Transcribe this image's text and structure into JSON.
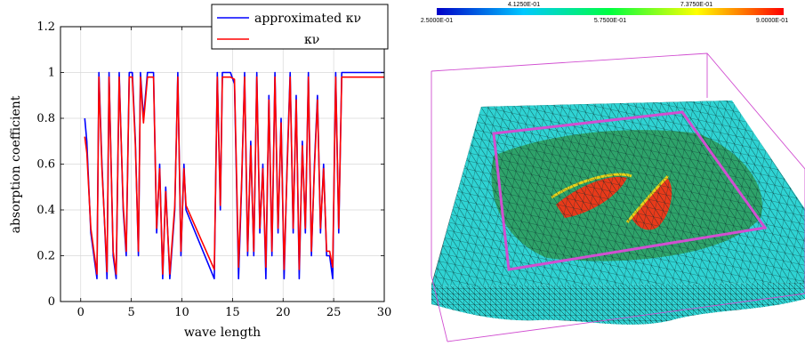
{
  "chart_data": [
    {
      "type": "line",
      "xlabel": "wave length",
      "ylabel": "absorption coefficient",
      "xlim": [
        -2,
        30
      ],
      "ylim": [
        0,
        1.2
      ],
      "xticks": [
        "0",
        "5",
        "10",
        "15",
        "20",
        "25",
        "30"
      ],
      "yticks": [
        "0",
        "0.2",
        "0.4",
        "0.6",
        "0.8",
        "1",
        "1.2"
      ],
      "grid": true,
      "legend_position": "top-right",
      "series": [
        {
          "name": "approximated κν",
          "color": "#0000ff",
          "x": [
            0.4,
            0.6,
            1.0,
            1.6,
            1.8,
            2.1,
            2.6,
            2.8,
            3.2,
            3.5,
            3.8,
            4.2,
            4.5,
            4.8,
            5.1,
            5.4,
            5.7,
            5.9,
            6.2,
            6.6,
            7.2,
            7.5,
            7.8,
            8.1,
            8.4,
            8.8,
            9.3,
            9.6,
            9.9,
            10.2,
            10.4,
            13.2,
            13.5,
            13.8,
            14.0,
            14.3,
            14.8,
            15.2,
            15.6,
            15.9,
            16.2,
            16.5,
            16.8,
            17.1,
            17.4,
            17.7,
            18.0,
            18.3,
            18.6,
            18.9,
            19.2,
            19.5,
            19.8,
            20.1,
            20.4,
            20.7,
            21.0,
            21.3,
            21.6,
            21.9,
            22.2,
            22.5,
            22.8,
            23.1,
            23.4,
            23.7,
            24.0,
            24.3,
            24.6,
            24.9,
            25.2,
            25.5,
            25.8,
            26.1,
            26.4,
            27,
            30
          ],
          "values": [
            0.8,
            0.7,
            0.3,
            0.1,
            1.0,
            0.6,
            0.1,
            1.0,
            0.2,
            0.1,
            1.0,
            0.4,
            0.2,
            1.0,
            1.0,
            0.7,
            0.2,
            1.0,
            0.8,
            1.0,
            1.0,
            0.3,
            0.6,
            0.1,
            0.5,
            0.1,
            0.4,
            1.0,
            0.2,
            0.6,
            0.4,
            0.1,
            1.0,
            0.4,
            1.0,
            1.0,
            1.0,
            0.95,
            0.1,
            0.5,
            1.0,
            0.2,
            0.7,
            0.2,
            1.0,
            0.3,
            0.6,
            0.1,
            0.9,
            0.2,
            1.0,
            0.3,
            0.8,
            0.1,
            0.6,
            1.0,
            0.3,
            0.9,
            0.1,
            0.7,
            0.3,
            1.0,
            0.2,
            0.6,
            0.9,
            0.3,
            0.6,
            0.2,
            0.2,
            0.1,
            1.0,
            0.3,
            1.0,
            1.0,
            1.0,
            1.0,
            1.0
          ]
        },
        {
          "name": "κν",
          "color": "#ff0000",
          "x": [
            0.4,
            0.6,
            1.0,
            1.6,
            1.8,
            2.1,
            2.6,
            2.8,
            3.2,
            3.5,
            3.8,
            4.2,
            4.5,
            4.8,
            5.1,
            5.4,
            5.7,
            5.9,
            6.2,
            6.6,
            7.2,
            7.5,
            7.8,
            8.1,
            8.4,
            8.8,
            9.3,
            9.6,
            9.9,
            10.2,
            10.4,
            13.2,
            13.5,
            13.8,
            14.0,
            14.3,
            14.8,
            15.2,
            15.6,
            15.9,
            16.2,
            16.5,
            16.8,
            17.1,
            17.4,
            17.7,
            18.0,
            18.3,
            18.6,
            18.9,
            19.2,
            19.5,
            19.8,
            20.1,
            20.4,
            20.7,
            21.0,
            21.3,
            21.6,
            21.9,
            22.2,
            22.5,
            22.8,
            23.1,
            23.4,
            23.7,
            24.0,
            24.3,
            24.6,
            24.9,
            25.2,
            25.5,
            25.8,
            26.1,
            26.4,
            27,
            30
          ],
          "values": [
            0.72,
            0.65,
            0.32,
            0.12,
            0.98,
            0.58,
            0.13,
            0.98,
            0.22,
            0.12,
            0.98,
            0.42,
            0.22,
            0.98,
            0.98,
            0.68,
            0.22,
            0.98,
            0.78,
            0.98,
            0.98,
            0.32,
            0.58,
            0.12,
            0.48,
            0.12,
            0.42,
            0.98,
            0.22,
            0.58,
            0.42,
            0.14,
            0.98,
            0.42,
            0.98,
            0.98,
            0.98,
            0.97,
            0.15,
            0.52,
            0.98,
            0.22,
            0.68,
            0.22,
            0.98,
            0.32,
            0.58,
            0.15,
            0.88,
            0.22,
            0.98,
            0.32,
            0.78,
            0.14,
            0.58,
            0.98,
            0.32,
            0.88,
            0.14,
            0.68,
            0.32,
            0.98,
            0.22,
            0.58,
            0.88,
            0.32,
            0.58,
            0.22,
            0.22,
            0.15,
            0.98,
            0.32,
            0.98,
            0.98,
            0.98,
            0.98,
            0.98
          ]
        }
      ]
    },
    {
      "type": "heatmap",
      "colorbar": {
        "top_labels": [
          "4.1250E-01",
          "7.3750E-01"
        ],
        "bottom_labels": [
          "2.5000E-01",
          "5.7500E-01",
          "9.0000E-01"
        ],
        "range": [
          0.25,
          0.9
        ],
        "colors": [
          "#0000c8",
          "#00c8ff",
          "#00ff40",
          "#ffff00",
          "#ff0000"
        ]
      },
      "surface_colors": {
        "base": "#2fd3d3",
        "mid": "#2ea36a",
        "high": "#e83a1a",
        "walls": "#1f2f2f",
        "box": "#d14fd1"
      }
    }
  ]
}
